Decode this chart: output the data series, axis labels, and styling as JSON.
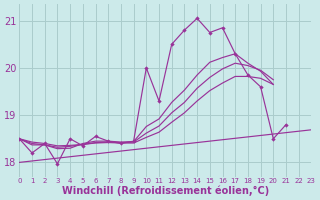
{
  "xlabel": "Windchill (Refroidissement éolien,°C)",
  "bg_color": "#cceaea",
  "grid_color": "#aacccc",
  "line_color": "#993399",
  "xmin": 0,
  "xmax": 23,
  "ymin": 17.7,
  "ymax": 21.35,
  "yticks": [
    18,
    19,
    20,
    21
  ],
  "hours": [
    0,
    1,
    2,
    3,
    4,
    5,
    6,
    7,
    8,
    9,
    10,
    11,
    12,
    13,
    14,
    15,
    16,
    17,
    18,
    19,
    20,
    21,
    22,
    23
  ],
  "main_line": [
    18.5,
    18.2,
    18.4,
    17.97,
    18.5,
    18.35,
    18.55,
    18.45,
    18.4,
    18.45,
    20.0,
    19.3,
    20.5,
    20.8,
    21.05,
    20.75,
    20.85,
    20.3,
    19.85,
    19.6,
    18.5,
    18.8,
    null,
    null
  ],
  "trend": [
    18.0,
    18.03,
    18.06,
    18.09,
    18.12,
    18.15,
    18.18,
    18.21,
    18.24,
    18.27,
    18.3,
    18.33,
    18.36,
    18.39,
    18.42,
    18.45,
    18.48,
    18.51,
    18.54,
    18.57,
    18.6,
    18.63,
    18.66,
    18.69
  ],
  "sma_short": [
    18.5,
    18.37,
    18.37,
    18.29,
    18.3,
    18.4,
    18.45,
    18.45,
    18.43,
    18.44,
    18.76,
    18.92,
    19.27,
    19.53,
    19.85,
    20.12,
    20.22,
    20.3,
    20.1,
    19.93,
    19.65,
    null,
    null,
    null
  ],
  "sma_mid": [
    18.5,
    18.4,
    18.37,
    18.32,
    18.34,
    18.38,
    18.42,
    18.43,
    18.42,
    18.43,
    18.62,
    18.77,
    19.05,
    19.27,
    19.57,
    19.8,
    19.98,
    20.1,
    20.05,
    19.95,
    19.75,
    null,
    null,
    null
  ],
  "sma_long": [
    18.5,
    18.43,
    18.4,
    18.35,
    18.36,
    18.38,
    18.41,
    18.42,
    18.41,
    18.41,
    18.53,
    18.64,
    18.85,
    19.05,
    19.3,
    19.52,
    19.68,
    19.82,
    19.82,
    19.78,
    19.65,
    null,
    null,
    null
  ]
}
